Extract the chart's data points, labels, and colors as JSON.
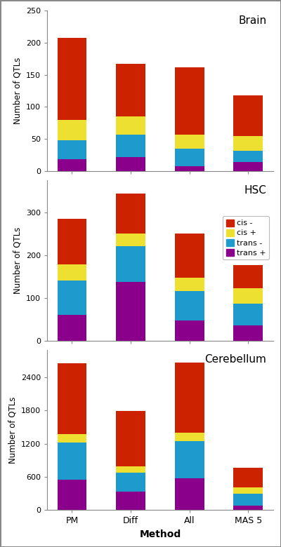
{
  "categories": [
    "PM",
    "Diff",
    "All",
    "MAS 5"
  ],
  "colors": {
    "trans_plus": "#8B008B",
    "trans_minus": "#1E9BCC",
    "cis_plus": "#EEE030",
    "cis_minus": "#CC2200"
  },
  "brain": {
    "trans_plus": [
      18,
      22,
      8,
      14
    ],
    "trans_minus": [
      30,
      35,
      27,
      18
    ],
    "cis_plus": [
      32,
      28,
      22,
      22
    ],
    "cis_minus": [
      127,
      82,
      105,
      64
    ]
  },
  "hsc": {
    "trans_plus": [
      60,
      137,
      47,
      35
    ],
    "trans_minus": [
      80,
      83,
      68,
      52
    ],
    "cis_plus": [
      38,
      30,
      32,
      35
    ],
    "cis_minus": [
      107,
      93,
      103,
      55
    ]
  },
  "cerebellum": {
    "trans_plus": [
      555,
      330,
      570,
      85
    ],
    "trans_minus": [
      660,
      345,
      670,
      215
    ],
    "cis_plus": [
      155,
      110,
      155,
      115
    ],
    "cis_minus": [
      1280,
      1005,
      1270,
      345
    ]
  },
  "brain_ylim": [
    0,
    250
  ],
  "hsc_ylim": [
    0,
    375
  ],
  "cerebellum_ylim": [
    0,
    2900
  ],
  "brain_yticks": [
    0,
    50,
    100,
    150,
    200,
    250
  ],
  "hsc_yticks": [
    0,
    100,
    200,
    300
  ],
  "cerebellum_yticks": [
    0,
    600,
    1200,
    1800,
    2400
  ],
  "tissue_labels": [
    "Brain",
    "HSC",
    "Cerebellum"
  ],
  "ylabel": "Number of QTLs",
  "xlabel": "Method",
  "legend_labels": [
    "cis -",
    "cis +",
    "trans -",
    "trans +"
  ],
  "legend_colors": [
    "#CC2200",
    "#EEE030",
    "#1E9BCC",
    "#8B008B"
  ],
  "figure_bg": "#FFFFFF",
  "border_color": "#888888"
}
